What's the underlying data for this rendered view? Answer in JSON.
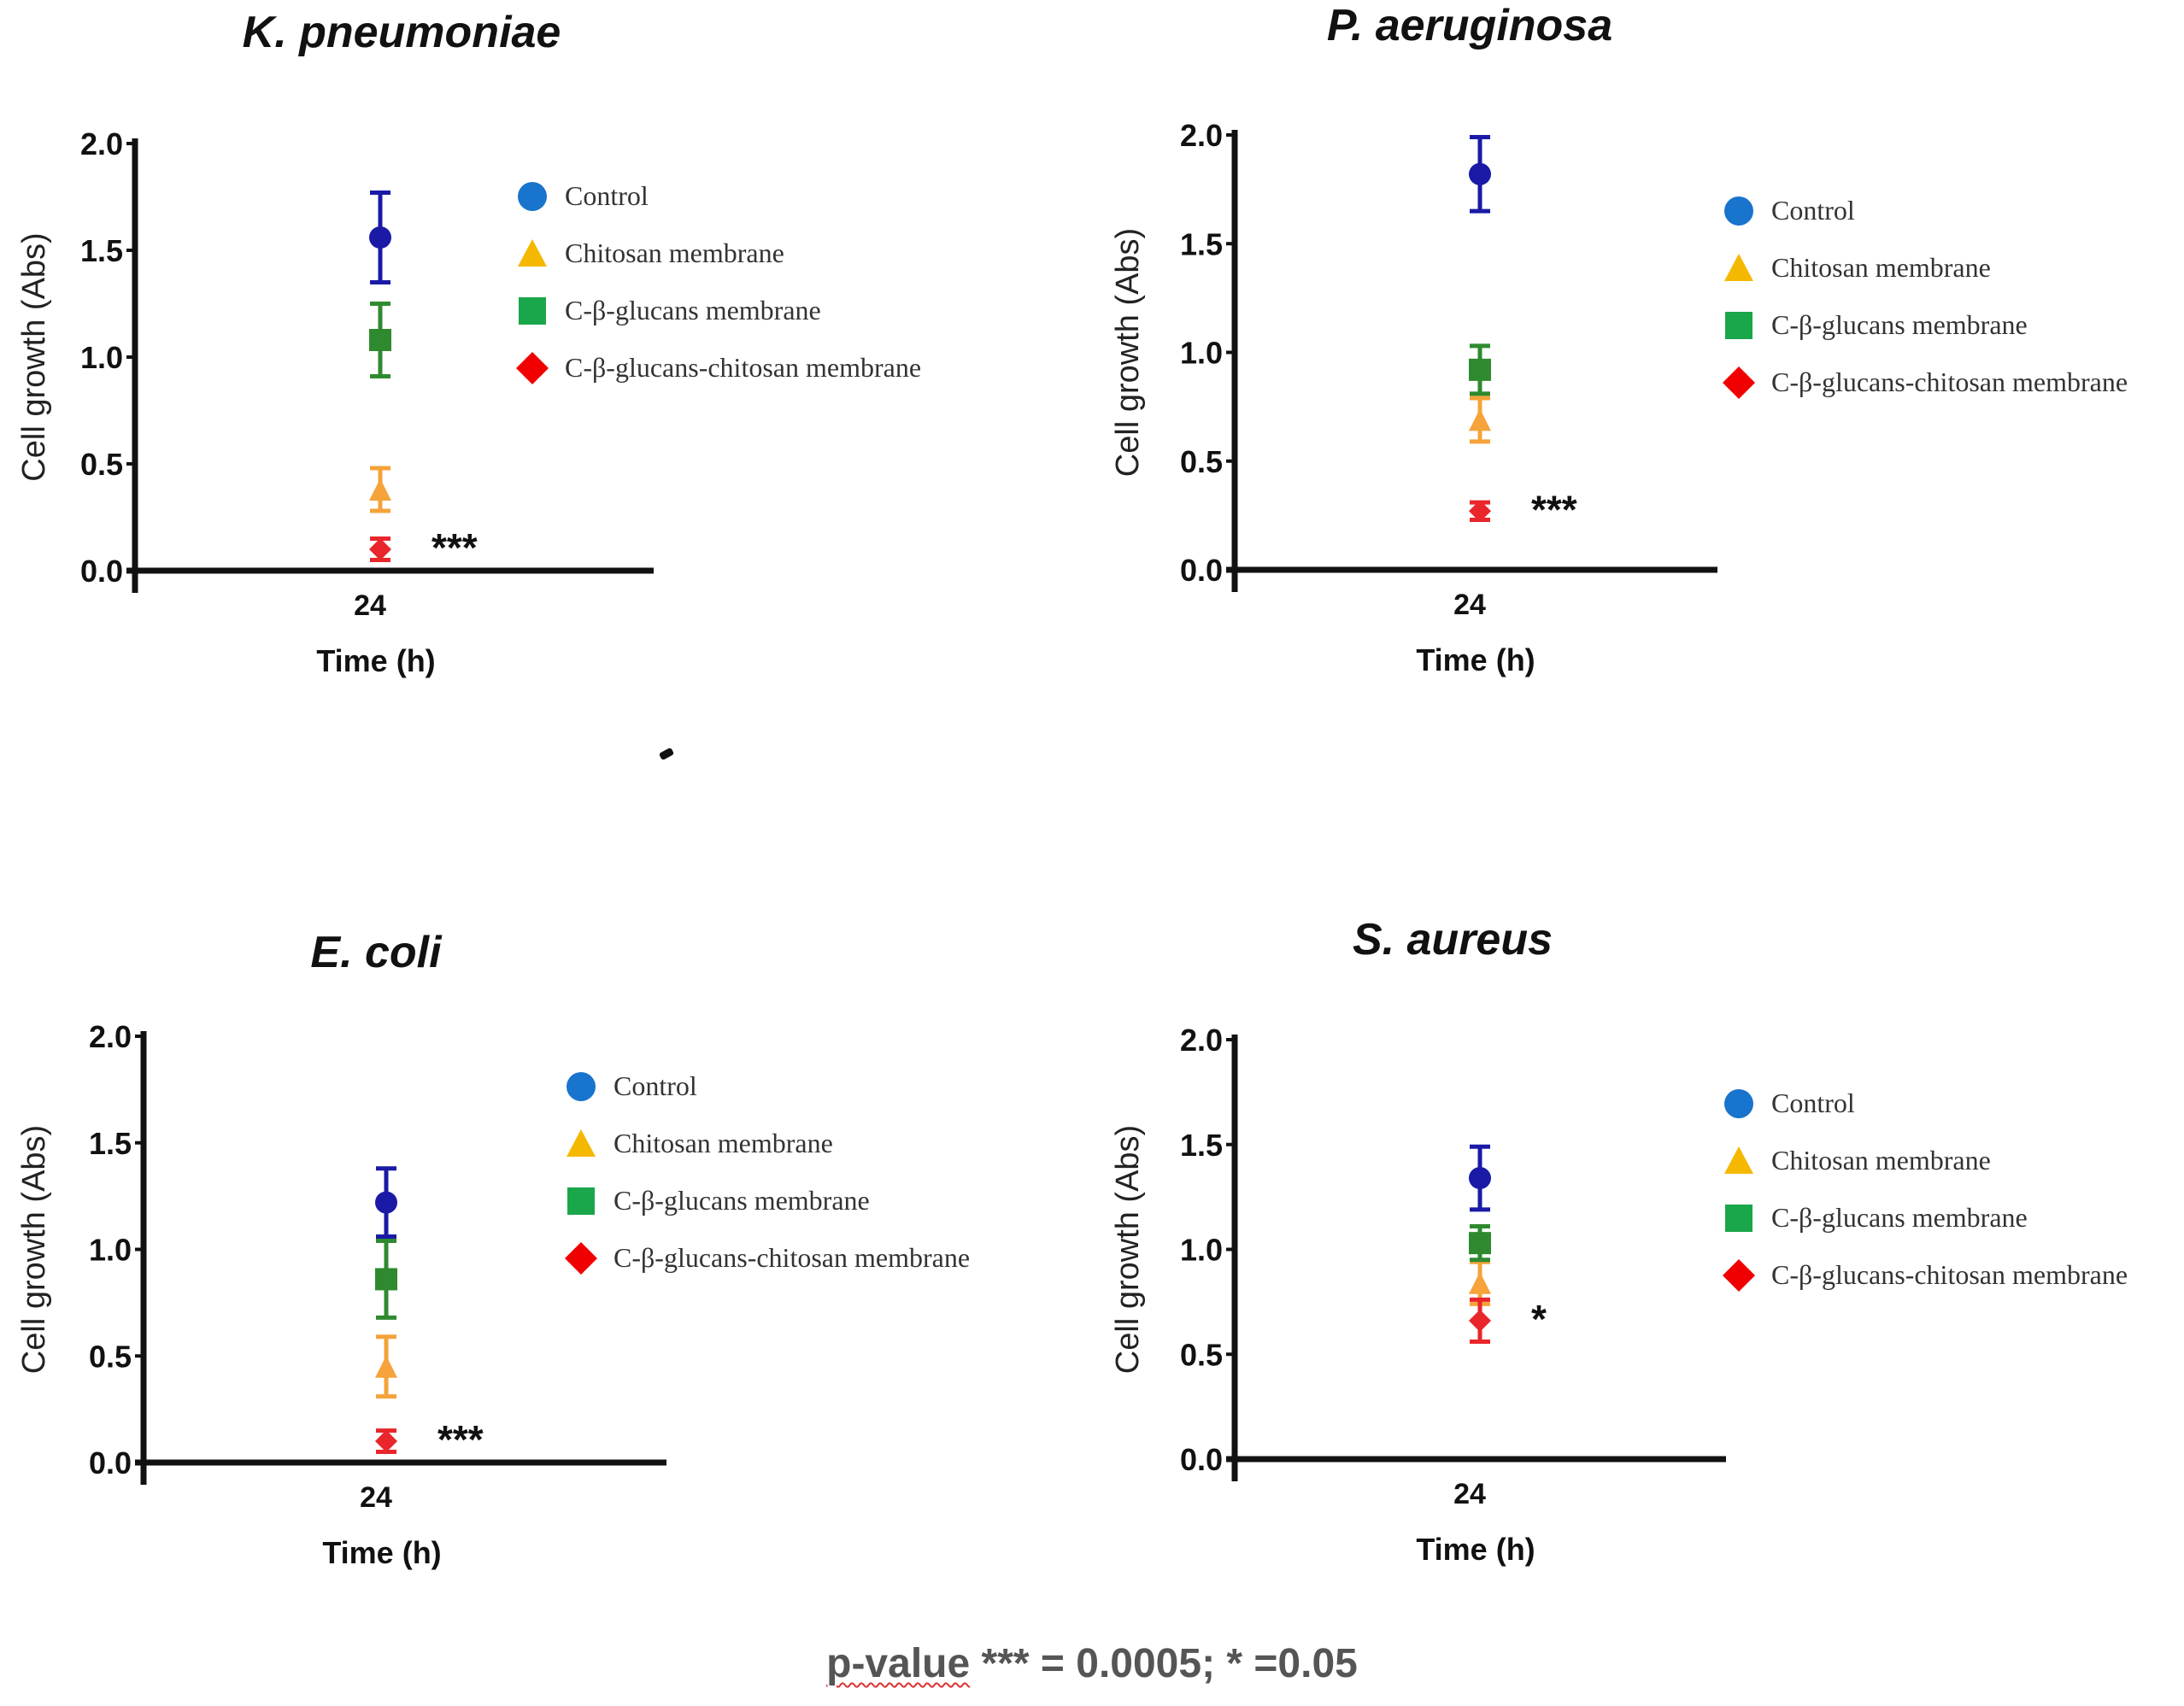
{
  "chart_data": [
    {
      "type": "scatter",
      "title": "K. pneumoniae",
      "xlabel": "Time (h)",
      "ylabel": "Cell growth (Abs)",
      "x_categories": [
        "24"
      ],
      "y_ticks": [
        "0.0",
        "0.5",
        "1.0",
        "1.5",
        "2.0"
      ],
      "ylim": [
        0,
        2
      ],
      "grid": false,
      "legend_position": "right",
      "series": [
        {
          "name": "Control",
          "marker": "circle",
          "color": "#1a1aa6",
          "legend_color": "#1874cd",
          "x": "24",
          "y": 1.56,
          "err": 0.21
        },
        {
          "name": "Chitosan membrane",
          "marker": "triangle",
          "color": "#f5a33a",
          "legend_color": "#f5b800",
          "x": "24",
          "y": 0.38,
          "err": 0.1
        },
        {
          "name": "C-β-glucans membrane",
          "marker": "square",
          "color": "#2f8a2f",
          "legend_color": "#1aa64a",
          "x": "24",
          "y": 1.08,
          "err": 0.17
        },
        {
          "name": "C-β-glucans-chitosan membrane",
          "marker": "diamond",
          "color": "#e8262b",
          "legend_color": "#f00000",
          "x": "24",
          "y": 0.1,
          "err": 0.05
        }
      ],
      "annotation": "***"
    },
    {
      "type": "scatter",
      "title": "P. aeruginosa",
      "xlabel": "Time (h)",
      "ylabel": "Cell growth (Abs)",
      "x_categories": [
        "24"
      ],
      "y_ticks": [
        "0.0",
        "0.5",
        "1.0",
        "1.5",
        "2.0"
      ],
      "ylim": [
        0,
        2
      ],
      "grid": false,
      "legend_position": "right",
      "series": [
        {
          "name": "Control",
          "marker": "circle",
          "color": "#1a1aa6",
          "legend_color": "#1874cd",
          "x": "24",
          "y": 1.82,
          "err": 0.17
        },
        {
          "name": "Chitosan membrane",
          "marker": "triangle",
          "color": "#f5a33a",
          "legend_color": "#f5b800",
          "x": "24",
          "y": 0.69,
          "err": 0.1
        },
        {
          "name": "C-β-glucans membrane",
          "marker": "square",
          "color": "#2f8a2f",
          "legend_color": "#1aa64a",
          "x": "24",
          "y": 0.92,
          "err": 0.11
        },
        {
          "name": "C-β-glucans-chitosan membrane",
          "marker": "diamond",
          "color": "#e8262b",
          "legend_color": "#f00000",
          "x": "24",
          "y": 0.27,
          "err": 0.04
        }
      ],
      "annotation": "***"
    },
    {
      "type": "scatter",
      "title": "E. coli",
      "xlabel": "Time (h)",
      "ylabel": "Cell growth (Abs)",
      "x_categories": [
        "24"
      ],
      "y_ticks": [
        "0.0",
        "0.5",
        "1.0",
        "1.5",
        "2.0"
      ],
      "ylim": [
        0,
        2
      ],
      "grid": false,
      "legend_position": "right",
      "series": [
        {
          "name": "Control",
          "marker": "circle",
          "color": "#1a1aa6",
          "legend_color": "#1874cd",
          "x": "24",
          "y": 1.22,
          "err": 0.16
        },
        {
          "name": "Chitosan membrane",
          "marker": "triangle",
          "color": "#f5a33a",
          "legend_color": "#f5b800",
          "x": "24",
          "y": 0.45,
          "err": 0.14
        },
        {
          "name": "C-β-glucans membrane",
          "marker": "square",
          "color": "#2f8a2f",
          "legend_color": "#1aa64a",
          "x": "24",
          "y": 0.86,
          "err": 0.18
        },
        {
          "name": "C-β-glucans-chitosan membrane",
          "marker": "diamond",
          "color": "#e8262b",
          "legend_color": "#f00000",
          "x": "24",
          "y": 0.1,
          "err": 0.05
        }
      ],
      "annotation": "***"
    },
    {
      "type": "scatter",
      "title": "S. aureus",
      "xlabel": "Time (h)",
      "ylabel": "Cell growth (Abs)",
      "x_categories": [
        "24"
      ],
      "y_ticks": [
        "0.0",
        "0.5",
        "1.0",
        "1.5",
        "2.0"
      ],
      "ylim": [
        0,
        2
      ],
      "grid": false,
      "legend_position": "right",
      "series": [
        {
          "name": "Control",
          "marker": "circle",
          "color": "#1a1aa6",
          "legend_color": "#1874cd",
          "x": "24",
          "y": 1.34,
          "err": 0.15
        },
        {
          "name": "Chitosan membrane",
          "marker": "triangle",
          "color": "#f5a33a",
          "legend_color": "#f5b800",
          "x": "24",
          "y": 0.84,
          "err": 0.1
        },
        {
          "name": "C-β-glucans membrane",
          "marker": "square",
          "color": "#2f8a2f",
          "legend_color": "#1aa64a",
          "x": "24",
          "y": 1.03,
          "err": 0.08
        },
        {
          "name": "C-β-glucans-chitosan membrane",
          "marker": "diamond",
          "color": "#e8262b",
          "legend_color": "#f00000",
          "x": "24",
          "y": 0.66,
          "err": 0.1
        }
      ],
      "annotation": "*"
    }
  ],
  "footnote": {
    "label": "p-value",
    "text": " *** = 0.0005; * =0.05"
  }
}
